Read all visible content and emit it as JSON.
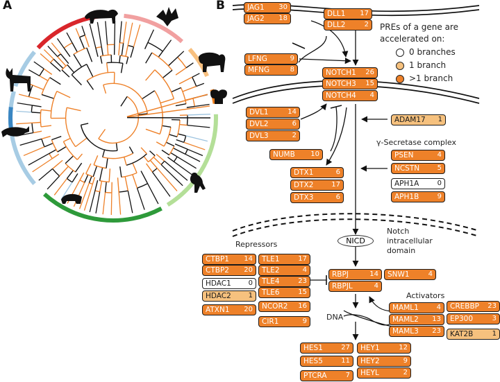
{
  "panels": {
    "a": "A",
    "b": "B"
  },
  "colors": {
    "accelerated_many": "#ee8129",
    "accelerated_one": "#f6c17e",
    "accelerated_none": "#ffffff",
    "clade_red": "#d9262b",
    "clade_pink": "#f1a0a0",
    "clade_orange_light": "#f8c07f",
    "clade_orange": "#ef7d1a",
    "clade_green_light": "#b4df98",
    "clade_green": "#2e9a3a",
    "clade_blue_light": "#a7cce4",
    "clade_blue": "#3a86c2"
  },
  "legend": {
    "title_line1": "PREs of a gene are",
    "title_line2": "accelerated on:",
    "items": [
      {
        "label": "0 branches",
        "level": "none"
      },
      {
        "label": "1 branch",
        "level": "light"
      },
      {
        "label": ">1 branch",
        "level": "dark"
      }
    ]
  },
  "labels": {
    "gamma_secretase": "γ-Secretase complex",
    "nicd": "NICD",
    "notch_domain_1": "Notch",
    "notch_domain_2": "intracellular",
    "notch_domain_3": "domain",
    "repressors": "Repressors",
    "activators": "Activators",
    "dna": "DNA"
  },
  "icons": [
    "jaguar-icon",
    "bat-icon",
    "elephant-icon",
    "koala-icon",
    "monkey-icon",
    "mole-icon",
    "dolphin-icon",
    "deer-icon"
  ],
  "genes": [
    {
      "name": "JAG1",
      "count": "30",
      "level": "dark"
    },
    {
      "name": "JAG2",
      "count": "18",
      "level": "dark"
    },
    {
      "name": "DLL1",
      "count": "17",
      "level": "dark"
    },
    {
      "name": "DLL2",
      "count": "2",
      "level": "dark"
    },
    {
      "name": "LFNG",
      "count": "9",
      "level": "dark"
    },
    {
      "name": "MFNG",
      "count": "8",
      "level": "dark"
    },
    {
      "name": "NOTCH1",
      "count": "26",
      "level": "dark"
    },
    {
      "name": "NOTCH3",
      "count": "15",
      "level": "dark"
    },
    {
      "name": "NOTCH4",
      "count": "4",
      "level": "dark"
    },
    {
      "name": "DVL1",
      "count": "14",
      "level": "dark"
    },
    {
      "name": "DVL2",
      "count": "6",
      "level": "dark"
    },
    {
      "name": "DVL3",
      "count": "2",
      "level": "dark"
    },
    {
      "name": "ADAM17",
      "count": "1",
      "level": "light"
    },
    {
      "name": "NUMB",
      "count": "10",
      "level": "dark"
    },
    {
      "name": "PSEN",
      "count": "4",
      "level": "dark"
    },
    {
      "name": "NCSTN",
      "count": "5",
      "level": "dark"
    },
    {
      "name": "APH1A",
      "count": "0",
      "level": "none"
    },
    {
      "name": "APH1B",
      "count": "9",
      "level": "dark"
    },
    {
      "name": "DTX1",
      "count": "6",
      "level": "dark"
    },
    {
      "name": "DTX2",
      "count": "17",
      "level": "dark"
    },
    {
      "name": "DTX3",
      "count": "6",
      "level": "dark"
    },
    {
      "name": "CTBP1",
      "count": "14",
      "level": "dark"
    },
    {
      "name": "CTBP2",
      "count": "20",
      "level": "dark"
    },
    {
      "name": "HDAC1",
      "count": "0",
      "level": "none"
    },
    {
      "name": "HDAC2",
      "count": "1",
      "level": "light"
    },
    {
      "name": "ATXN1",
      "count": "20",
      "level": "dark"
    },
    {
      "name": "TLE1",
      "count": "17",
      "level": "dark"
    },
    {
      "name": "TLE2",
      "count": "4",
      "level": "dark"
    },
    {
      "name": "TLE4",
      "count": "23",
      "level": "dark"
    },
    {
      "name": "TLE6",
      "count": "15",
      "level": "dark"
    },
    {
      "name": "NCOR2",
      "count": "16",
      "level": "dark"
    },
    {
      "name": "CIR1",
      "count": "9",
      "level": "dark"
    },
    {
      "name": "RBPJ",
      "count": "14",
      "level": "dark"
    },
    {
      "name": "RBPJL",
      "count": "4",
      "level": "dark"
    },
    {
      "name": "SNW1",
      "count": "4",
      "level": "dark"
    },
    {
      "name": "MAML1",
      "count": "4",
      "level": "dark"
    },
    {
      "name": "MAML2",
      "count": "13",
      "level": "dark"
    },
    {
      "name": "MAML3",
      "count": "23",
      "level": "dark"
    },
    {
      "name": "CREBBP",
      "count": "23",
      "level": "dark"
    },
    {
      "name": "EP300",
      "count": "3",
      "level": "dark"
    },
    {
      "name": "KAT2B",
      "count": "1",
      "level": "light"
    },
    {
      "name": "HES1",
      "count": "27",
      "level": "dark"
    },
    {
      "name": "HES5",
      "count": "11",
      "level": "dark"
    },
    {
      "name": "PTCRA",
      "count": "7",
      "level": "dark"
    },
    {
      "name": "HEY1",
      "count": "12",
      "level": "dark"
    },
    {
      "name": "HEY2",
      "count": "9",
      "level": "dark"
    },
    {
      "name": "HEYL",
      "count": "2",
      "level": "dark"
    }
  ]
}
